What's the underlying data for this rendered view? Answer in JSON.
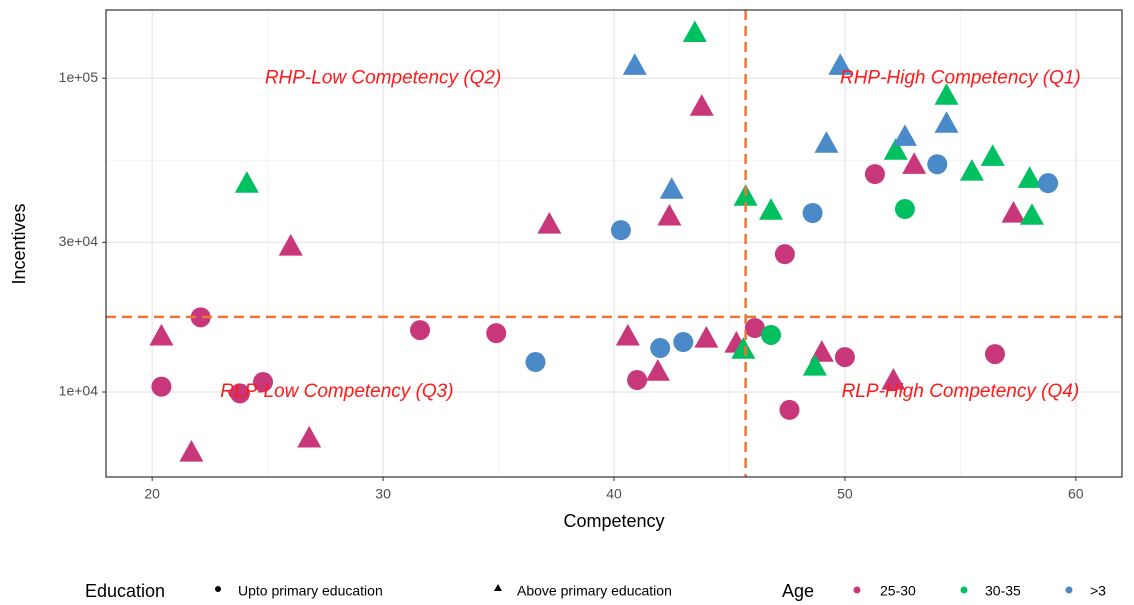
{
  "chart_data": {
    "type": "scatter",
    "xlabel": "Competency",
    "ylabel": "Incentives",
    "xlim": [
      18,
      62
    ],
    "ylim": [
      5360,
      165000
    ],
    "ylog": true,
    "grid": true,
    "xticks": [
      20,
      30,
      40,
      50,
      60
    ],
    "yticks": [
      {
        "value": 10000,
        "label": "1e+04"
      },
      {
        "value": 30000,
        "label": "3e+04"
      },
      {
        "value": 100000,
        "label": "1e+05"
      }
    ],
    "vlines": [
      45.7
    ],
    "hlines": [
      17350
    ],
    "line_color": "#e8773a",
    "annotations": [
      {
        "text": "RHP-Low Competency (Q2)",
        "x": 30.0,
        "y": 100000
      },
      {
        "text": "RHP-High Competency (Q1)",
        "x": 55.0,
        "y": 100000
      },
      {
        "text": "RLP-Low Competency (Q3)",
        "x": 28.0,
        "y": 10000
      },
      {
        "text": "RLP-High Competency (Q4)",
        "x": 55.0,
        "y": 10000
      }
    ],
    "legend_position": "bottom",
    "education": {
      "title": "Education",
      "levels": [
        {
          "name": "Upto primary education",
          "marker": "circle"
        },
        {
          "name": "Above primary education",
          "marker": "triangle"
        }
      ]
    },
    "age_title": "Age",
    "series": [
      {
        "name": "25-30",
        "color": "#c8377a",
        "x": [
          20.4,
          20.4,
          22.1,
          23.8,
          21.7,
          24.8,
          26.0,
          26.8,
          31.6,
          34.9,
          37.2,
          40.6,
          41.0,
          41.9,
          42.4,
          43.8,
          44.0,
          45.3,
          46.1,
          47.4,
          47.6,
          49.0,
          50.0,
          51.3,
          52.1,
          53.0,
          56.5,
          57.3
        ],
        "values": [
          10400,
          15100,
          17300,
          9900,
          6440,
          10760,
          29200,
          7140,
          15750,
          15400,
          34300,
          15100,
          10920,
          11660,
          36400,
          81500,
          14860,
          14330,
          15990,
          27500,
          8770,
          13400,
          12920,
          49500,
          10920,
          53200,
          13210,
          37200
        ],
        "education": [
          0,
          1,
          0,
          0,
          1,
          0,
          1,
          1,
          0,
          0,
          1,
          1,
          0,
          1,
          1,
          1,
          1,
          1,
          0,
          0,
          0,
          1,
          0,
          0,
          1,
          1,
          0,
          1
        ]
      },
      {
        "name": "30-35",
        "color": "#00c060",
        "x": [
          24.1,
          43.5,
          45.7,
          45.6,
          46.8,
          46.8,
          48.7,
          52.2,
          52.6,
          54.4,
          55.5,
          56.4,
          58.0,
          58.1
        ],
        "values": [
          46300,
          140000,
          42100,
          13700,
          15200,
          38000,
          12100,
          59000,
          38300,
          88300,
          50600,
          56400,
          48000,
          36600
        ],
        "education": [
          1,
          1,
          1,
          1,
          0,
          1,
          1,
          1,
          0,
          1,
          1,
          1,
          1,
          1
        ]
      },
      {
        "name": ">3",
        "color": "#4a8ac8",
        "x": [
          36.6,
          40.3,
          40.9,
          42.0,
          42.5,
          43.0,
          48.6,
          49.2,
          49.8,
          52.6,
          54.0,
          54.4,
          58.8
        ],
        "values": [
          12460,
          32800,
          110000,
          13810,
          44300,
          14430,
          37200,
          62100,
          110000,
          65300,
          53200,
          71900,
          46300
        ],
        "education": [
          0,
          0,
          1,
          0,
          1,
          0,
          0,
          1,
          1,
          1,
          0,
          1,
          0
        ]
      }
    ]
  }
}
